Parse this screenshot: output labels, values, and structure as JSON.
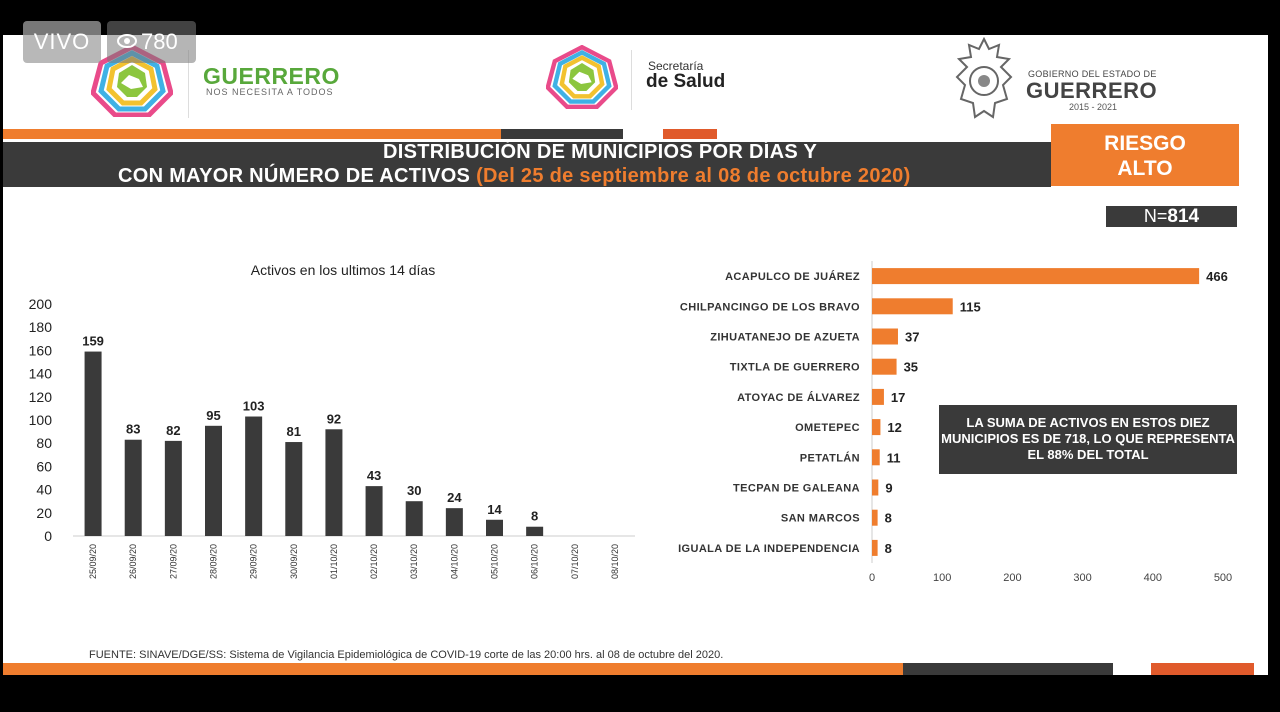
{
  "overlay": {
    "live_label": "VIVO",
    "viewers": "780"
  },
  "header": {
    "left_logo_title": "GUERRERO",
    "left_logo_subtitle": "NOS NECESITA A TODOS",
    "center_logo_line1": "Secretaría",
    "center_logo_line2": "de Salud",
    "right_logo_line1": "GOBIERNO DEL ESTADO DE",
    "right_logo_line2": "GUERRERO",
    "right_logo_line3": "2015 - 2021"
  },
  "title": {
    "line1": "DISTRIBUCIÓN DE MUNICIPIOS POR DÍAS Y",
    "line2": "CON MAYOR NÚMERO DE ACTIVOS",
    "line2_highlight": "(Del 25 de septiembre al 08 de octubre 2020)"
  },
  "risk": {
    "line1": "RIESGO",
    "line2": "ALTO"
  },
  "total": {
    "prefix": "N=",
    "value": "814"
  },
  "note": "LA SUMA DE ACTIVOS EN ESTOS DIEZ MUNICIPIOS ES DE 718, LO QUE REPRESENTA EL 88% DEL TOTAL",
  "source": "FUENTE: SINAVE/DGE/SS: Sistema de Vigilancia Epidemiológica de COVID-19 corte de las 20:00 hrs. al 08 de octubre del 2020.",
  "colors": {
    "orange": "#ef7d2e",
    "dark": "#3a3a3a",
    "red_orange": "#e05a2b"
  },
  "chart_data": [
    {
      "type": "bar",
      "title": "Activos en los ultimos 14 días",
      "categories": [
        "25/09/20",
        "26/09/20",
        "27/09/20",
        "28/09/20",
        "29/09/20",
        "30/09/20",
        "01/10/20",
        "02/10/20",
        "03/10/20",
        "04/10/20",
        "05/10/20",
        "06/10/20",
        "07/10/20",
        "08/10/20"
      ],
      "values": [
        159,
        83,
        82,
        95,
        103,
        81,
        92,
        43,
        30,
        24,
        14,
        8,
        null,
        null
      ],
      "data_labels": [
        "159",
        "83",
        "82",
        "95",
        "103",
        "81",
        "92",
        "43",
        "30",
        "24",
        "14",
        "8",
        "",
        ""
      ],
      "ylim": [
        0,
        200
      ],
      "yticks": [
        0,
        20,
        40,
        60,
        80,
        100,
        120,
        140,
        160,
        180,
        200
      ],
      "color": "#3a3a3a",
      "grid": false
    },
    {
      "type": "bar",
      "orientation": "horizontal",
      "categories": [
        "ACAPULCO DE JUÁREZ",
        "CHILPANCINGO DE LOS BRAVO",
        "ZIHUATANEJO DE AZUETA",
        "TIXTLA DE GUERRERO",
        "ATOYAC DE ÁLVAREZ",
        "OMETEPEC",
        "PETATLÁN",
        "TECPAN DE GALEANA",
        "SAN MARCOS",
        "IGUALA DE LA INDEPENDENCIA"
      ],
      "values": [
        466,
        115,
        37,
        35,
        17,
        12,
        11,
        9,
        8,
        8
      ],
      "xlim": [
        0,
        500
      ],
      "xticks": [
        0,
        100,
        200,
        300,
        400,
        500
      ],
      "color": "#ef7d2e",
      "grid": false
    }
  ]
}
